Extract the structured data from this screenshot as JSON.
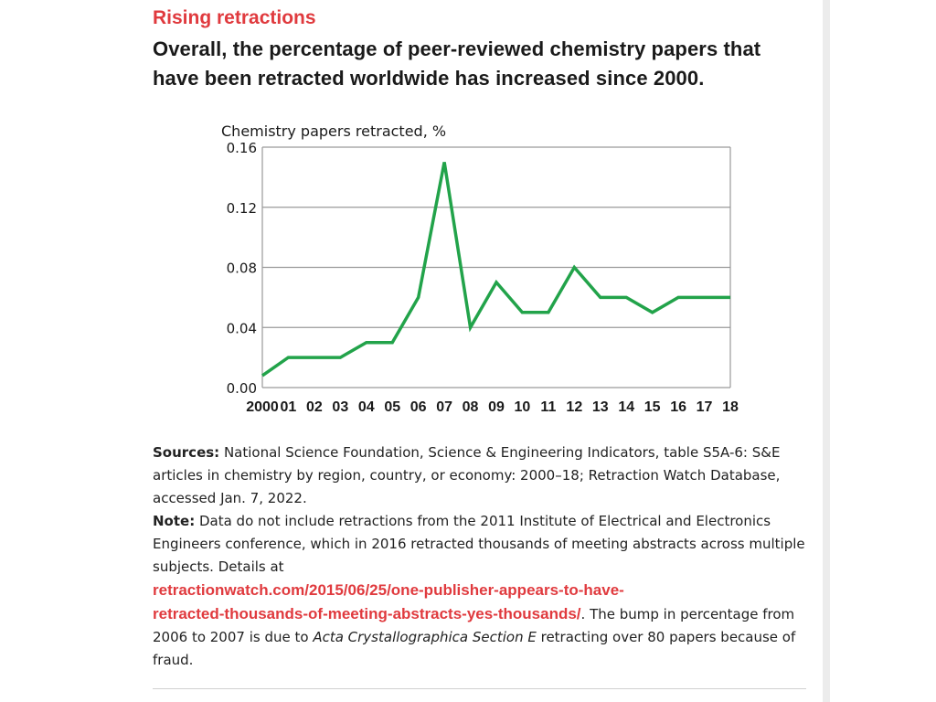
{
  "kicker": "Rising retractions",
  "headline": "Overall, the percentage of peer-reviewed chemistry papers that have been retracted worldwide has increased since 2000.",
  "chart_data": {
    "type": "line",
    "ylabel": "Chemistry papers retracted, %",
    "categories": [
      "2000",
      "01",
      "02",
      "03",
      "04",
      "05",
      "06",
      "07",
      "08",
      "09",
      "10",
      "11",
      "12",
      "13",
      "14",
      "15",
      "16",
      "17",
      "18"
    ],
    "values": [
      0.008,
      0.02,
      0.02,
      0.02,
      0.03,
      0.03,
      0.06,
      0.15,
      0.04,
      0.07,
      0.05,
      0.05,
      0.08,
      0.06,
      0.06,
      0.05,
      0.06,
      0.06,
      0.06
    ],
    "yticks": [
      "0.00",
      "0.04",
      "0.08",
      "0.12",
      "0.16"
    ],
    "ylim": [
      0,
      0.16
    ],
    "grid": true,
    "line_color": "#22a34a"
  },
  "sources": {
    "label": "Sources:",
    "text": " National Science Foundation, Science & Engineering Indicators, table S5A-6: S&E articles in chemistry by region, country, or economy: 2000–18; Retraction Watch Database, accessed Jan. 7, 2022."
  },
  "note": {
    "label": "Note:",
    "text": " Data do not include retractions from the 2011 Institute of Electrical and Electronics Engineers conference, which in 2016 retracted thousands of meeting abstracts across multiple subjects. Details at",
    "link_line1": "retractionwatch.com/2015/06/25/one-publisher-appears-to-have-",
    "link_line2": "retracted-thousands-of-meeting-abstracts-yes-thousands/",
    "after_link": ". The bump in percentage from 2006 to 2007 is due to ",
    "journal": "Acta Crystallographica Section E",
    "end": " retracting over 80 papers because of fraud."
  },
  "colors": {
    "accent": "#e03a3e",
    "line": "#22a34a"
  }
}
